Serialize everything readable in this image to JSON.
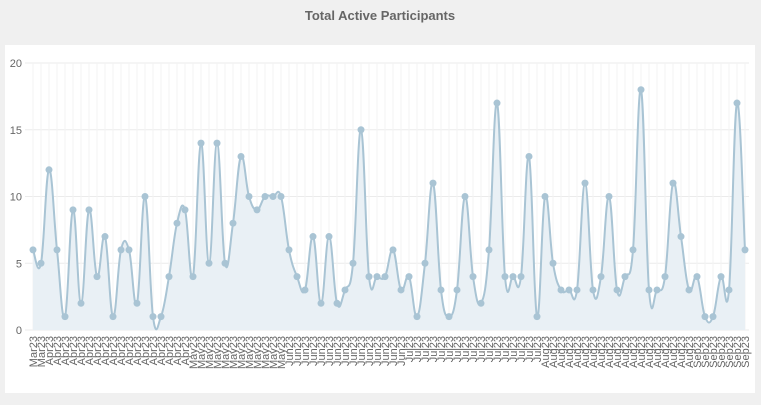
{
  "chart_data": {
    "type": "line",
    "title": "Total Active Participants",
    "categories": [
      "Mar23",
      "Mar23",
      "Apr23",
      "Apr23",
      "Apr23",
      "Apr23",
      "Apr23",
      "Apr23",
      "Apr23",
      "Apr23",
      "Apr23",
      "Apr23",
      "Apr23",
      "Apr23",
      "Apr23",
      "Apr23",
      "Apr23",
      "Apr23",
      "Apr23",
      "Apr23",
      "May23",
      "May23",
      "May23",
      "May23",
      "May23",
      "May23",
      "May23",
      "May23",
      "May23",
      "May23",
      "May23",
      "May23",
      "Jun23",
      "Jun23",
      "Jun23",
      "Jun23",
      "Jun23",
      "Jun23",
      "Jun23",
      "Jun23",
      "Jun23",
      "Jun23",
      "Jun23",
      "Jun23",
      "Jun23",
      "Jun23",
      "Jun23",
      "Jul23",
      "Jul23",
      "Jul23",
      "Jul23",
      "Jul23",
      "Jul23",
      "Jul23",
      "Jul23",
      "Jul23",
      "Jul23",
      "Jul23",
      "Jul23",
      "Jul23",
      "Jul23",
      "Jul23",
      "Jul23",
      "Jul23",
      "Aug23",
      "Aug23",
      "Aug23",
      "Aug23",
      "Aug23",
      "Aug23",
      "Aug23",
      "Aug23",
      "Aug23",
      "Aug23",
      "Aug23",
      "Aug23",
      "Aug23",
      "Aug23",
      "Aug23",
      "Aug23",
      "Aug23",
      "Aug23",
      "Aug23",
      "Sep23",
      "Sep23",
      "Sep23",
      "Sep23",
      "Sep23",
      "Sep23",
      "Sep23"
    ],
    "values": [
      6,
      5,
      12,
      6,
      1,
      9,
      2,
      9,
      4,
      7,
      1,
      6,
      6,
      2,
      10,
      1,
      1,
      4,
      8,
      9,
      4,
      14,
      5,
      14,
      5,
      8,
      13,
      10,
      9,
      10,
      10,
      10,
      6,
      4,
      3,
      7,
      2,
      7,
      2,
      3,
      5,
      15,
      4,
      4,
      4,
      6,
      3,
      4,
      1,
      5,
      11,
      3,
      1,
      3,
      10,
      4,
      2,
      6,
      17,
      4,
      4,
      4,
      13,
      1,
      10,
      5,
      3,
      3,
      3,
      11,
      3,
      4,
      10,
      3,
      4,
      6,
      18,
      3,
      3,
      4,
      11,
      7,
      3,
      4,
      1,
      1,
      4,
      3,
      17,
      6
    ],
    "color": "#a9c4d4",
    "fill": "#e9f0f5",
    "ylim": [
      0,
      20
    ],
    "yticks": [
      0,
      5,
      10,
      15,
      20
    ],
    "grid": true
  }
}
